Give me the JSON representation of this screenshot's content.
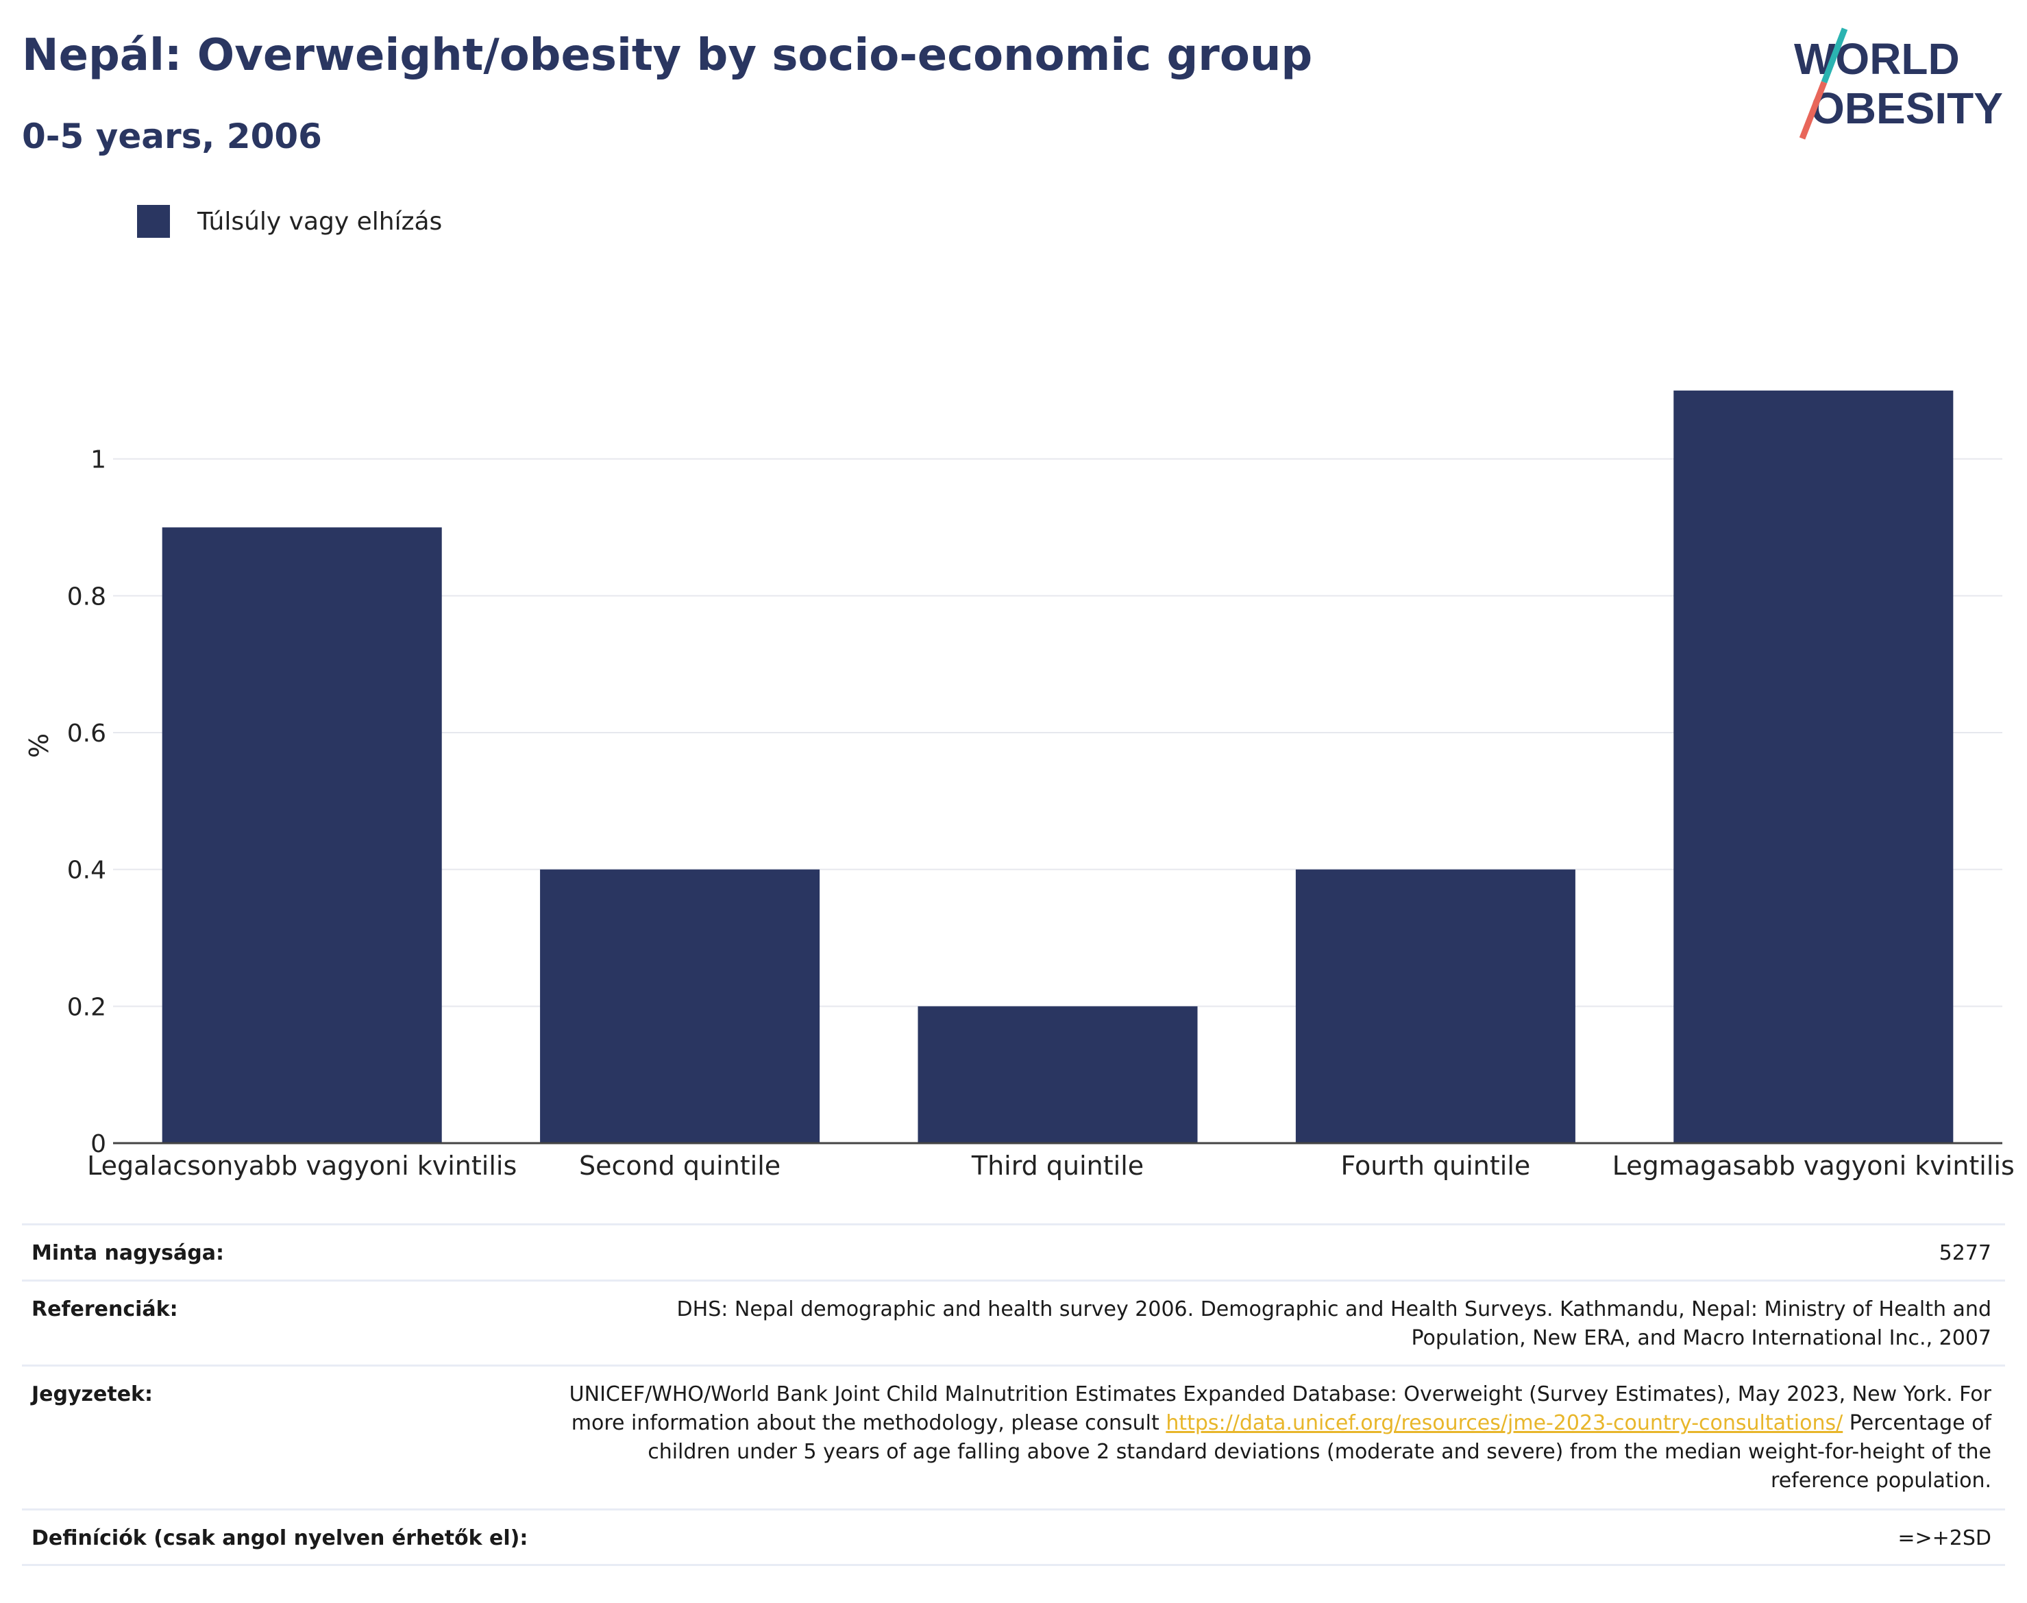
{
  "header": {
    "title": "Nepál: Overweight/obesity by socio-economic group",
    "subtitle": "0-5 years, 2006"
  },
  "logo": {
    "line1": "WORLD",
    "line2": "OBESITY",
    "colors": {
      "text": "#2a3661",
      "slash_top": "#2bb3b1",
      "slash_bottom": "#e8665a"
    }
  },
  "legend": {
    "label": "Túlsúly vagy elhízás",
    "color": "#2a3661"
  },
  "chart_data": {
    "type": "bar",
    "categories": [
      "Legalacsonyabb vagyoni kvintilis",
      "Second quintile",
      "Third quintile",
      "Fourth quintile",
      "Legmagasabb vagyoni kvintilis"
    ],
    "series": [
      {
        "name": "Túlsúly vagy elhízás",
        "values": [
          0.9,
          0.4,
          0.2,
          0.4,
          1.1
        ],
        "color": "#2a3661"
      }
    ],
    "ylabel": "%",
    "ylim": [
      0,
      1.2
    ],
    "yticks": [
      0,
      0.2,
      0.4,
      0.6,
      0.8,
      1
    ],
    "ytick_labels": [
      "0",
      "0.2",
      "0.4",
      "0.6",
      "0.8",
      "1"
    ],
    "grid": true,
    "legend_position": "top-left"
  },
  "info": {
    "rows": [
      {
        "label": "Minta nagysága:",
        "value": "5277"
      },
      {
        "label": "Referenciák:",
        "value": "DHS: Nepal demographic and health survey 2006. Demographic and Health Surveys. Kathmandu, Nepal: Ministry of Health and Population, New ERA, and Macro International Inc., 2007"
      },
      {
        "label": "Jegyzetek:",
        "value_before": "UNICEF/WHO/World Bank Joint Child Malnutrition Estimates Expanded Database: Overweight (Survey Estimates), May 2023, New York. For more information about the methodology, please consult ",
        "link": "https://data.unicef.org/resources/jme-2023-country-consultations/",
        "value_after": " Percentage of children under 5 years of age falling above 2 standard deviations (moderate and severe) from the median weight-for-height of the reference population."
      },
      {
        "label": "Definíciók (csak angol nyelven érhetők el):",
        "value": "=>+2SD"
      }
    ]
  }
}
